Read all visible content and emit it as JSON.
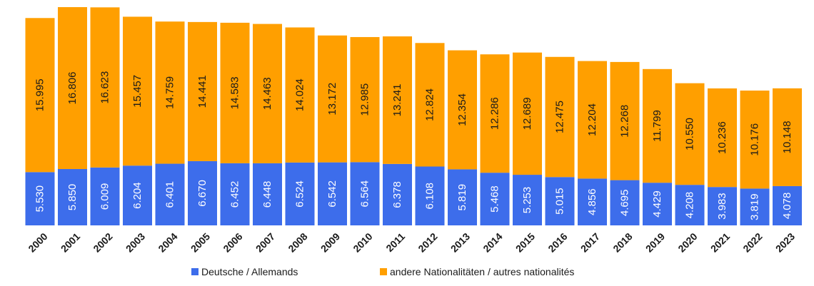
{
  "chart_data": {
    "type": "bar",
    "stacked": true,
    "categories": [
      "2000",
      "2001",
      "2002",
      "2003",
      "2004",
      "2005",
      "2006",
      "2007",
      "2008",
      "2009",
      "2010",
      "2011",
      "2012",
      "2013",
      "2014",
      "2015",
      "2016",
      "2017",
      "2018",
      "2019",
      "2020",
      "2021",
      "2022",
      "2023"
    ],
    "series": [
      {
        "name": "Deutsche / Allemands",
        "color": "#3D6DEB",
        "values": [
          5530,
          5850,
          6009,
          6204,
          6401,
          6670,
          6452,
          6448,
          6524,
          6542,
          6564,
          6378,
          6108,
          5819,
          5468,
          5253,
          5015,
          4856,
          4695,
          4429,
          4208,
          3983,
          3819,
          4078
        ],
        "labels": [
          "5.530",
          "5.850",
          "6.009",
          "6.204",
          "6.401",
          "6.670",
          "6.452",
          "6.448",
          "6.524",
          "6.542",
          "6.564",
          "6.378",
          "6.108",
          "5.819",
          "5.468",
          "5.253",
          "5.015",
          "4.856",
          "4.695",
          "4.429",
          "4.208",
          "3.983",
          "3.819",
          "4.078"
        ]
      },
      {
        "name": "andere Nationalitäten / autres nationalités",
        "color": "#FF9F00",
        "values": [
          15995,
          16806,
          16623,
          15457,
          14759,
          14441,
          14583,
          14463,
          14024,
          13172,
          12985,
          13241,
          12824,
          12354,
          12286,
          12689,
          12475,
          12204,
          12268,
          11799,
          10550,
          10236,
          10176,
          10148
        ],
        "labels": [
          "15.995",
          "16.806",
          "16.623",
          "15.457",
          "14.759",
          "14.441",
          "14.583",
          "14.463",
          "14.024",
          "13.172",
          "12.985",
          "13.241",
          "12.824",
          "12.354",
          "12.286",
          "12.689",
          "12.475",
          "12.204",
          "12.268",
          "11.799",
          "10.550",
          "10.236",
          "10.176",
          "10.148"
        ]
      }
    ],
    "ylim": [
      0,
      22656
    ],
    "grid": false,
    "legend": "bottom",
    "title": "",
    "xlabel": "",
    "ylabel": ""
  }
}
